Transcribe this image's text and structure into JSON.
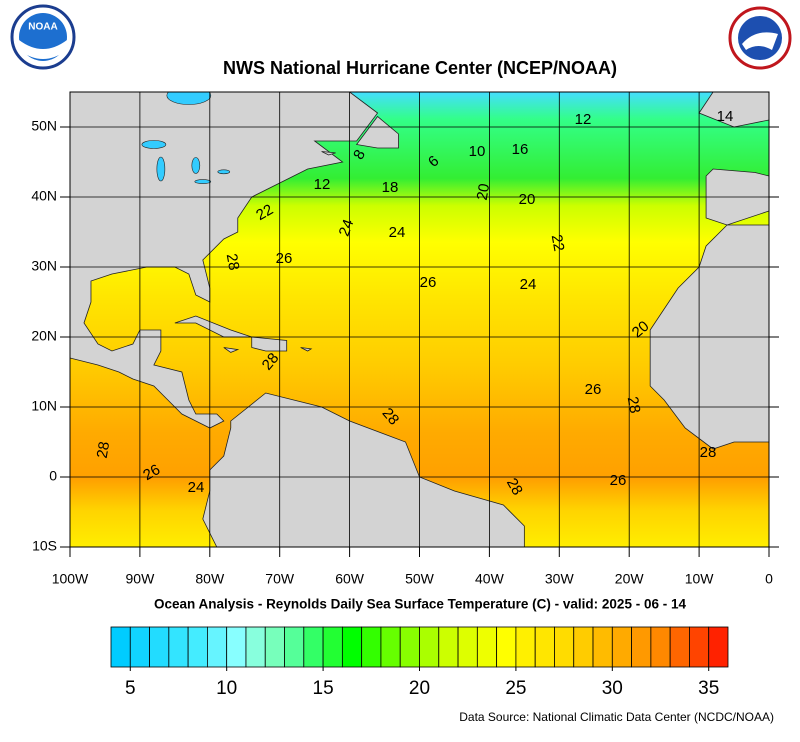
{
  "header": {
    "title": "NWS National Hurricane Center (NCEP/NOAA)",
    "logo_text": "NOAA"
  },
  "map": {
    "xlim": [
      -100,
      0
    ],
    "ylim": [
      -10,
      55
    ],
    "xticks": [
      {
        "value": -100,
        "label": "100W"
      },
      {
        "value": -90,
        "label": "90W"
      },
      {
        "value": -80,
        "label": "80W"
      },
      {
        "value": -70,
        "label": "70W"
      },
      {
        "value": -60,
        "label": "60W"
      },
      {
        "value": -50,
        "label": "50W"
      },
      {
        "value": -40,
        "label": "40W"
      },
      {
        "value": -30,
        "label": "30W"
      },
      {
        "value": -20,
        "label": "20W"
      },
      {
        "value": -10,
        "label": "10W"
      },
      0
    ],
    "yticks": [
      {
        "value": -10,
        "label": "10S"
      },
      0,
      {
        "value": 10,
        "label": "10N"
      },
      {
        "value": 20,
        "label": "20N"
      },
      {
        "value": 30,
        "label": "30N"
      },
      {
        "value": 40,
        "label": "40N"
      },
      {
        "value": 50,
        "label": "50N"
      }
    ],
    "grid": true,
    "contour_labels": [
      12,
      14,
      8,
      6,
      10,
      16,
      12,
      18,
      20,
      20,
      22,
      24,
      24,
      22,
      28,
      26,
      26,
      24,
      20,
      28,
      26,
      28,
      28,
      28,
      28,
      26,
      24,
      26,
      28
    ]
  },
  "caption": "Ocean Analysis - Reynolds Daily Sea Surface Temperature (C) - valid: 2025 - 06 - 14",
  "colorbar": {
    "range": [
      4,
      36
    ],
    "ticks": [
      5,
      10,
      15,
      20,
      25,
      30,
      35
    ],
    "colors": [
      "#00ccff",
      "#11d4ff",
      "#22dcff",
      "#33e4ff",
      "#44ecff",
      "#66f4ff",
      "#88ffff",
      "#88ffdd",
      "#77ffbb",
      "#55ff99",
      "#33ff66",
      "#22ff33",
      "#00ff00",
      "#33ff00",
      "#66ff00",
      "#88ff00",
      "#aaff00",
      "#ccff00",
      "#ddff00",
      "#eeff00",
      "#ffff00",
      "#fff000",
      "#ffe600",
      "#ffdc00",
      "#ffcc00",
      "#ffbb00",
      "#ffaa00",
      "#ff9900",
      "#ff8800",
      "#ff6600",
      "#ff4400",
      "#ff2200"
    ]
  },
  "source": "Data Source: National Climatic Data Center (NCDC/NOAA)"
}
